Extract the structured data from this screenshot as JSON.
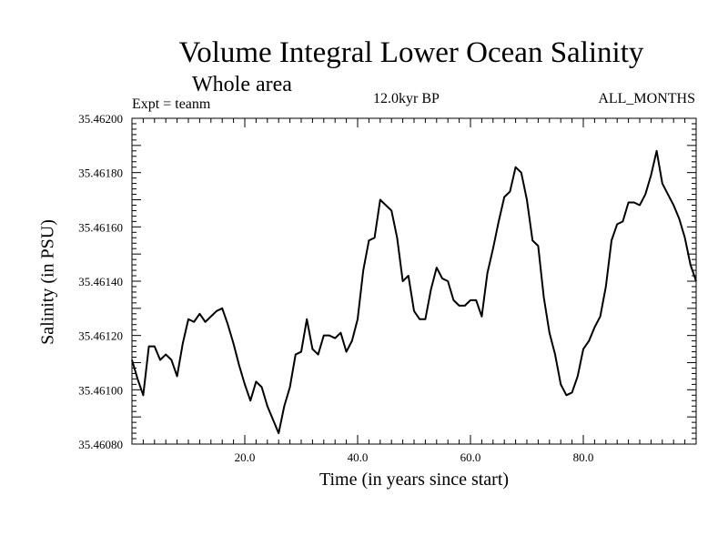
{
  "chart_data": {
    "type": "line",
    "title": "Volume Integral Lower Ocean Salinity",
    "subtitle": "Whole area",
    "experiment_label": "Expt = teanm",
    "period_label": "12.0kyr BP",
    "months_label": "ALL_MONTHS",
    "xlabel": "Time (in years since start)",
    "ylabel": "Salinity (in PSU)",
    "xlim": [
      0,
      100
    ],
    "ylim": [
      35.4608,
      35.462
    ],
    "xticks": [
      20,
      40,
      60,
      80
    ],
    "xtick_labels": [
      "20.0",
      "40.0",
      "60.0",
      "80.0"
    ],
    "yticks": [
      35.4608,
      35.461,
      35.4612,
      35.4614,
      35.4616,
      35.4618,
      35.462
    ],
    "ytick_labels": [
      "35.46080",
      "35.46100",
      "35.46120",
      "35.46140",
      "35.46160",
      "35.46180",
      "35.46200"
    ],
    "series": [
      {
        "name": "Salinity",
        "color": "#000000",
        "x": [
          0,
          1,
          2,
          3,
          4,
          5,
          6,
          7,
          8,
          9,
          10,
          11,
          12,
          13,
          14,
          15,
          16,
          17,
          18,
          19,
          20,
          21,
          22,
          23,
          24,
          25,
          26,
          27,
          28,
          29,
          30,
          31,
          32,
          33,
          34,
          35,
          36,
          37,
          38,
          39,
          40,
          41,
          42,
          43,
          44,
          45,
          46,
          47,
          48,
          49,
          50,
          51,
          52,
          53,
          54,
          55,
          56,
          57,
          58,
          59,
          60,
          61,
          62,
          63,
          64,
          65,
          66,
          67,
          68,
          69,
          70,
          71,
          72,
          73,
          74,
          75,
          76,
          77,
          78,
          79,
          80,
          81,
          82,
          83,
          84,
          85,
          86,
          87,
          88,
          89,
          90,
          91,
          92,
          93,
          94,
          95,
          96,
          97,
          98,
          99,
          100
        ],
        "values": [
          35.46111,
          35.46104,
          35.46098,
          35.46116,
          35.46116,
          35.46111,
          35.46113,
          35.46111,
          35.46105,
          35.46117,
          35.46126,
          35.46125,
          35.46128,
          35.46125,
          35.46127,
          35.46129,
          35.4613,
          35.46124,
          35.46117,
          35.46109,
          35.46102,
          35.46096,
          35.46103,
          35.46101,
          35.46094,
          35.46089,
          35.46084,
          35.46094,
          35.46101,
          35.46113,
          35.46114,
          35.46126,
          35.46115,
          35.46113,
          35.4612,
          35.4612,
          35.46119,
          35.46121,
          35.46114,
          35.46118,
          35.46126,
          35.46144,
          35.46155,
          35.46156,
          35.4617,
          35.46168,
          35.46166,
          35.46156,
          35.4614,
          35.46142,
          35.46129,
          35.46126,
          35.46126,
          35.46137,
          35.46145,
          35.46141,
          35.4614,
          35.46133,
          35.46131,
          35.46131,
          35.46133,
          35.46133,
          35.46127,
          35.46143,
          35.46152,
          35.46162,
          35.46171,
          35.46173,
          35.46182,
          35.4618,
          35.4617,
          35.46155,
          35.46153,
          35.46134,
          35.46121,
          35.46113,
          35.46102,
          35.46098,
          35.46099,
          35.46105,
          35.46115,
          35.46118,
          35.46123,
          35.46127,
          35.46138,
          35.46155,
          35.46161,
          35.46162,
          35.46169,
          35.46169,
          35.46168,
          35.46172,
          35.46179,
          35.46188,
          35.46176,
          35.46172,
          35.46168,
          35.46163,
          35.46156,
          35.46146,
          35.4614
        ]
      }
    ]
  }
}
